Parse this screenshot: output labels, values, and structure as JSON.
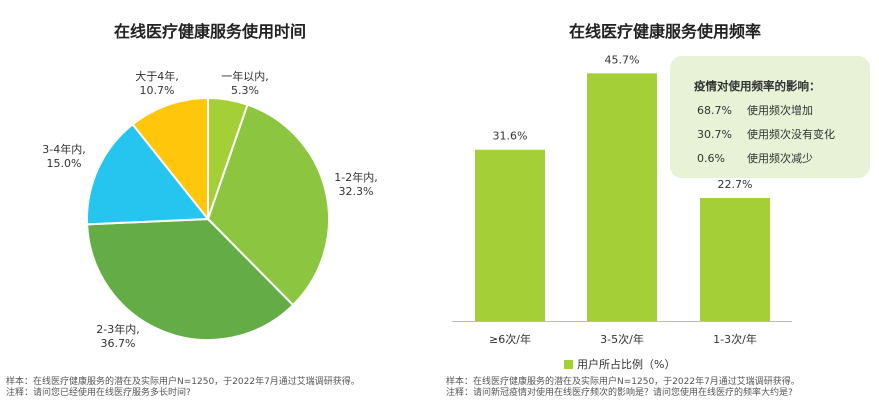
{
  "left_chart": {
    "title": "在线医疗健康服务使用时间",
    "note_line1": "样本：在线医疗健康服务的潜在及实际用户N=1250，于2022年7月通过艾瑞调研获得。",
    "note_line2": "注释：请问您已经使用在线医疗服务多长时间?"
  },
  "right_chart": {
    "title": "在线医疗健康服务使用频率",
    "note_line1": "样本：在线医疗健康服务的潜在及实际用户N=1250，于2022年7月通过艾瑞调研获得。",
    "note_line2": "注释：请问新冠疫情对使用在线医疗频次的影响是？请问您使用在线医疗的频率大约是?",
    "callout": {
      "title": "疫情对使用频率的影响：",
      "rows": [
        {
          "pct": "68.7%",
          "text": "使用频次增加"
        },
        {
          "pct": "30.7%",
          "text": "使用频次没有变化"
        },
        {
          "pct": "0.6%",
          "text": "使用频次减少"
        }
      ]
    },
    "legend": "用户所占比例（%）"
  },
  "chart_data": [
    {
      "type": "pie",
      "title": "在线医疗健康服务使用时间",
      "categories": [
        "一年以内",
        "1-2年内",
        "2-3年内",
        "3-4年内",
        "大于4年"
      ],
      "values": [
        5.3,
        32.3,
        36.7,
        15.0,
        10.7
      ],
      "labels": [
        "5.3%",
        "32.3%",
        "36.7%",
        "15.0%",
        "10.7%"
      ],
      "label_names": [
        "一年以内,",
        "1-2年内,",
        "2-3年内,",
        "3-4年内,",
        "大于4年,"
      ],
      "colors": [
        "#a5cf37",
        "#8cc540",
        "#64ad46",
        "#25c5ef",
        "#ffc60b"
      ]
    },
    {
      "type": "bar",
      "title": "在线医疗健康服务使用频率",
      "categories": [
        "≥6次/年",
        "3-5次/年",
        "1-3次/年"
      ],
      "values": [
        31.6,
        45.7,
        22.7
      ],
      "labels": [
        "31.6%",
        "45.7%",
        "22.7%"
      ],
      "series": [
        {
          "name": "用户所占比例（%）",
          "values": [
            31.6,
            45.7,
            22.7
          ]
        }
      ],
      "color": "#a5cf37",
      "ylim": [
        0,
        50
      ],
      "grid": false
    }
  ]
}
